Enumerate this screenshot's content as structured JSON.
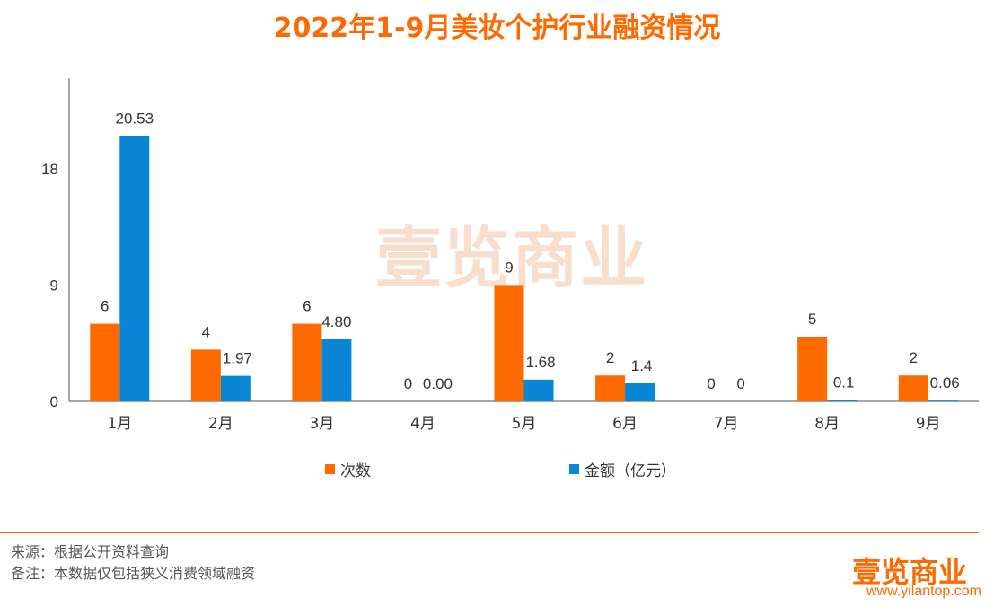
{
  "colors": {
    "orange": "#ff6a00",
    "blue": "#0a86d6",
    "axis": "#888888"
  },
  "watermark": "壹览商业",
  "legend": {
    "count_label": "次数",
    "amount_label": "金额（亿元）"
  },
  "footer": {
    "source": "来源：根据公开资料查询",
    "note": "备注：本数据仅包括狭义消费领域融资",
    "brand": "壹览商业",
    "url": "www.yilantop.com"
  },
  "chart_data": {
    "type": "bar",
    "title": "2022年1-9月美妆个护行业融资情况",
    "categories": [
      "1月",
      "2月",
      "3月",
      "4月",
      "5月",
      "6月",
      "7月",
      "8月",
      "9月"
    ],
    "series": [
      {
        "name": "次数",
        "values": [
          6,
          4,
          6,
          0,
          9,
          2,
          0,
          5,
          2
        ],
        "labels": [
          "6",
          "4",
          "6",
          "0",
          "9",
          "2",
          "0",
          "5",
          "2"
        ]
      },
      {
        "name": "金额（亿元）",
        "values": [
          20.53,
          1.97,
          4.8,
          0,
          1.68,
          1.4,
          0,
          0.1,
          0.06
        ],
        "labels": [
          "20.53",
          "1.97",
          "4.80",
          "0.00",
          "1.68",
          "1.4",
          "0",
          "0.1",
          "0.06"
        ]
      }
    ],
    "yticks": [
      0,
      9,
      18
    ],
    "ylim": [
      0,
      25
    ],
    "grid": false,
    "legend_position": "bottom"
  }
}
